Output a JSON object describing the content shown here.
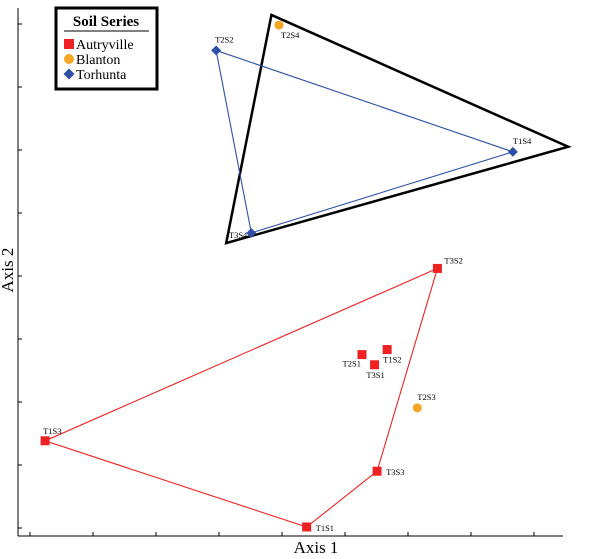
{
  "chart_data": {
    "type": "scatter",
    "title": "",
    "xlabel": "Axis 1",
    "ylabel": "Axis 2",
    "xlim": [
      0,
      100
    ],
    "ylim": [
      0,
      100
    ],
    "grid": false,
    "legend": {
      "title": "Soil Series",
      "placement": "top-left"
    },
    "series": [
      {
        "name": "Autryville",
        "marker": "square",
        "color": "#ee2222",
        "points": [
          {
            "label": "T3S2",
            "x": 81,
            "y": 51
          },
          {
            "label": "T1S3",
            "x": 3,
            "y": 17
          },
          {
            "label": "T1S1",
            "x": 55,
            "y": 0
          },
          {
            "label": "T3S3",
            "x": 69,
            "y": 11
          },
          {
            "label": "T2S1",
            "x": 66,
            "y": 34
          },
          {
            "label": "T3S1",
            "x": 68.5,
            "y": 32
          },
          {
            "label": "T1S2",
            "x": 71,
            "y": 35
          }
        ],
        "hull": [
          "T3S2",
          "T1S3",
          "T1S1",
          "T3S3"
        ]
      },
      {
        "name": "Blanton",
        "marker": "circle",
        "color": "#f5a623",
        "points": [
          {
            "label": "T2S4",
            "x": 49.5,
            "y": 99
          },
          {
            "label": "T2S3",
            "x": 77,
            "y": 23.5
          }
        ]
      },
      {
        "name": "Torhunta",
        "marker": "diamond",
        "color": "#2e4fa8",
        "points": [
          {
            "label": "T2S2",
            "x": 37,
            "y": 94
          },
          {
            "label": "T1S4",
            "x": 96,
            "y": 74
          },
          {
            "label": "T3S4",
            "x": 44,
            "y": 58
          }
        ],
        "hull": [
          "T2S2",
          "T1S4",
          "T3S4"
        ]
      }
    ],
    "outline_triangle": [
      {
        "x": 48,
        "y": 101
      },
      {
        "x": 107,
        "y": 75
      },
      {
        "x": 39,
        "y": 56
      }
    ]
  }
}
